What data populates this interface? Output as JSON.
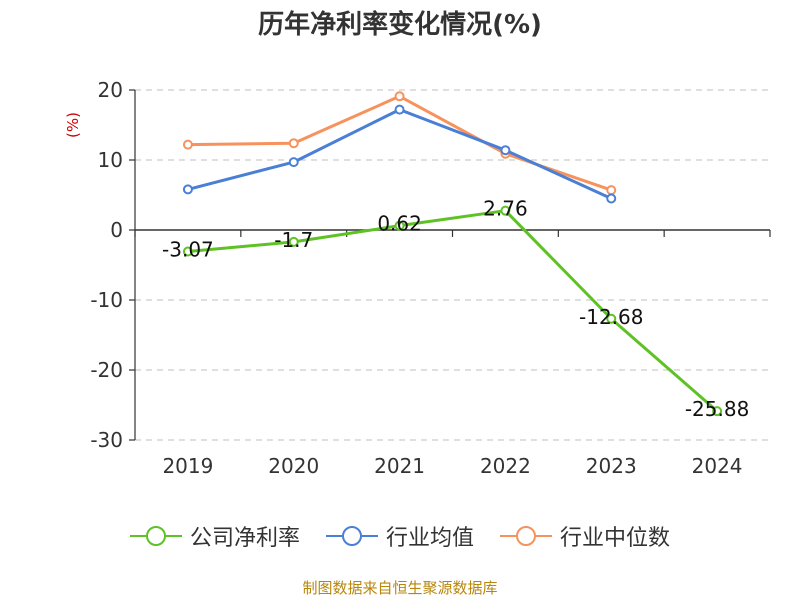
{
  "title": "历年净利率变化情况(%)",
  "source_text": "制图数据来自恒生聚源数据库",
  "colors": {
    "company": "#5ec225",
    "industry_avg": "#4a7fd6",
    "industry_median": "#f7925c",
    "axis": "#333333",
    "grid": "#cccccc",
    "ylabel": "#cc0000"
  },
  "chart_data": {
    "type": "line",
    "title": "历年净利率变化情况(%)",
    "xlabel": "",
    "ylabel": "(%)",
    "categories": [
      "2019",
      "2020",
      "2021",
      "2022",
      "2023",
      "2024"
    ],
    "ylim": [
      -30,
      20
    ],
    "yticks": [
      20,
      10,
      0,
      -10,
      -20,
      -30
    ],
    "grid": true,
    "legend_position": "bottom",
    "series": [
      {
        "name": "公司净利率",
        "values": [
          -3.07,
          -1.7,
          0.62,
          2.76,
          -12.68,
          -25.88
        ],
        "labels": [
          "-3.07",
          "-1.7",
          "0.62",
          "2.76",
          "-12.68",
          "-25.88"
        ]
      },
      {
        "name": "行业均值",
        "values": [
          5.8,
          9.7,
          17.2,
          11.4,
          4.5,
          null
        ]
      },
      {
        "name": "行业中位数",
        "values": [
          12.2,
          12.4,
          19.1,
          10.9,
          5.7,
          null
        ]
      }
    ]
  }
}
